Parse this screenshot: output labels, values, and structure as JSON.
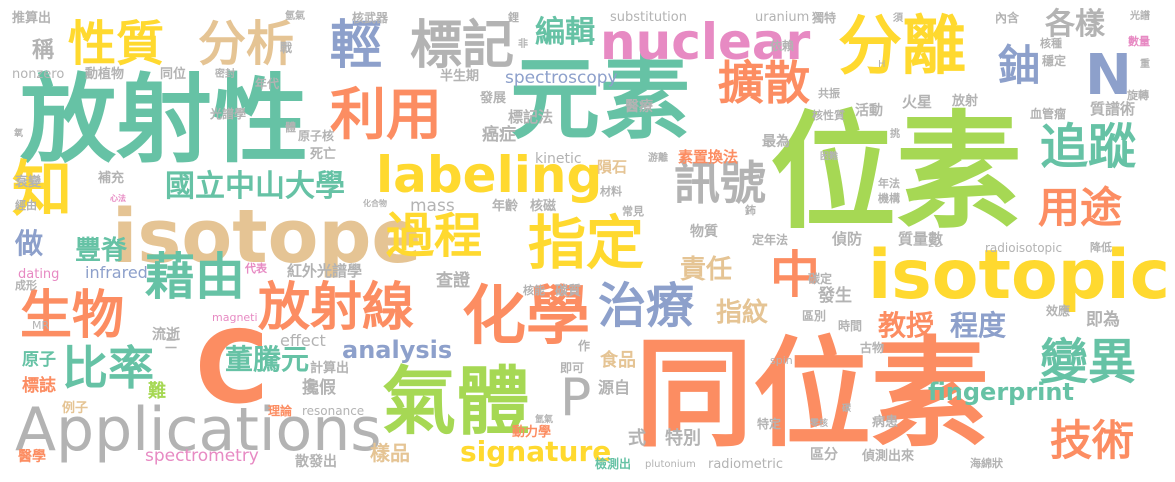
{
  "palette": {
    "teal": "#66c2a5",
    "orange": "#fc8d62",
    "blue": "#8da0cb",
    "pink": "#e78ac3",
    "green": "#a6d854",
    "yellow": "#ffd92f",
    "tan": "#e5c494",
    "gray": "#b3b3b3"
  },
  "words": {
    "w01": "放射性",
    "w02": "元素",
    "w03": "位素",
    "w04": "同位素",
    "w05": "isotope",
    "w06": "isotopic",
    "w07": "Applications",
    "w08": "C",
    "w09": "分離",
    "w10": "氣體",
    "w11": "化學",
    "w12": "nuclear",
    "w13": "labeling",
    "w14": "利用",
    "w15": "性質",
    "w16": "分析",
    "w17": "標記",
    "w18": "輕",
    "w19": "擴散",
    "w20": "鈾",
    "w21": "N",
    "w22": "追蹤",
    "w23": "用途",
    "w24": "知",
    "w25": "藉由",
    "w26": "生物",
    "w27": "比率",
    "w28": "放射線",
    "w29": "過程",
    "w30": "指定",
    "w31": "治療",
    "w32": "中",
    "w33": "訊號",
    "w34": "變異",
    "w35": "技術",
    "w36": "國立中山大學",
    "w37": "編輯",
    "w38": "各樣",
    "w39": "P",
    "w40": "董騰元",
    "w41": "signature",
    "w42": "analysis",
    "w43": "fingerprint",
    "w44": "教授",
    "w45": "程度",
    "w46": "責任",
    "w47": "指紋",
    "w48": "豐脊",
    "w49": "做",
    "w50": "稱",
    "w51": "spectroscopy",
    "w52": "infrared",
    "w53": "mass",
    "w54": "spectrometry",
    "w55": "effect",
    "w56": "substitution",
    "w57": "uranium",
    "w58": "kinetic",
    "w59": "resonance",
    "w60": "radioisotopic",
    "w61": "radiometric",
    "w62": "plutonium",
    "w63": "dating",
    "w64": "nonzero",
    "w65": "magneti",
    "w66": "MR",
    "w67": "spin",
    "w68": "2D",
    "w69": "H",
    "w70": "原子",
    "w71": "標誌",
    "w72": "醫學",
    "w73": "例子",
    "w74": "難",
    "w75": "樣品",
    "w76": "檢測出",
    "w77": "區分",
    "w78": "偵測出來",
    "w79": "海綿狀",
    "w80": "散發出",
    "w81": "動力學",
    "w82": "特別",
    "w83": "式",
    "w84": "源自",
    "w85": "即可",
    "w86": "食品",
    "w87": "計算出",
    "w88": "攙假",
    "w89": "流逝",
    "w90": "理論",
    "w91": "紅外光譜學",
    "w92": "代表",
    "w93": "查證",
    "w94": "碳質",
    "w95": "核能",
    "w96": "物質",
    "w97": "年齡",
    "w98": "隕石",
    "w99": "核磁",
    "w100": "素置換法",
    "w101": "醫療",
    "w102": "癌症",
    "w103": "發展",
    "w104": "標記法",
    "w105": "半生期",
    "w106": "核武器",
    "w107": "推算出",
    "w108": "氫氣",
    "w109": "戰",
    "w110": "密封",
    "w111": "動植物",
    "w112": "同位",
    "w113": "年代",
    "w114": "光譜學",
    "w115": "原子核",
    "w116": "死亡",
    "w117": "補充",
    "w118": "衰變",
    "w119": "經由",
    "w120": "成形",
    "w121": "化合物",
    "w122": "心法",
    "w123": "體",
    "w124": "氧",
    "w125": "內含",
    "w126": "核種",
    "w127": "穩定",
    "w128": "光譜",
    "w129": "數量",
    "w130": "重",
    "w131": "共振",
    "w132": "旋轉",
    "w133": "血管瘤",
    "w134": "質譜術",
    "w135": "放射",
    "w136": "火星",
    "w137": "活動",
    "w138": "最為",
    "w139": "核性質",
    "w140": "依賴",
    "w141": "獨特",
    "w142": "須",
    "w143": "非",
    "w144": "鋰",
    "w145": "游離",
    "w146": "材料",
    "w147": "常見",
    "w148": "困難",
    "w149": "年法",
    "w150": "機構",
    "w151": "鈽",
    "w152": "定年法",
    "w153": "偵防",
    "w154": "質量數",
    "w155": "降低",
    "w156": "碳定",
    "w157": "發生",
    "w158": "區別",
    "w159": "時間",
    "w160": "效應",
    "w161": "即為",
    "w162": "古物",
    "w163": "病患",
    "w164": "零核",
    "w165": "特定",
    "w166": "氫氣",
    "w167": "挑",
    "w168": "作",
    "w169": "碳",
    "w170": "二"
  }
}
